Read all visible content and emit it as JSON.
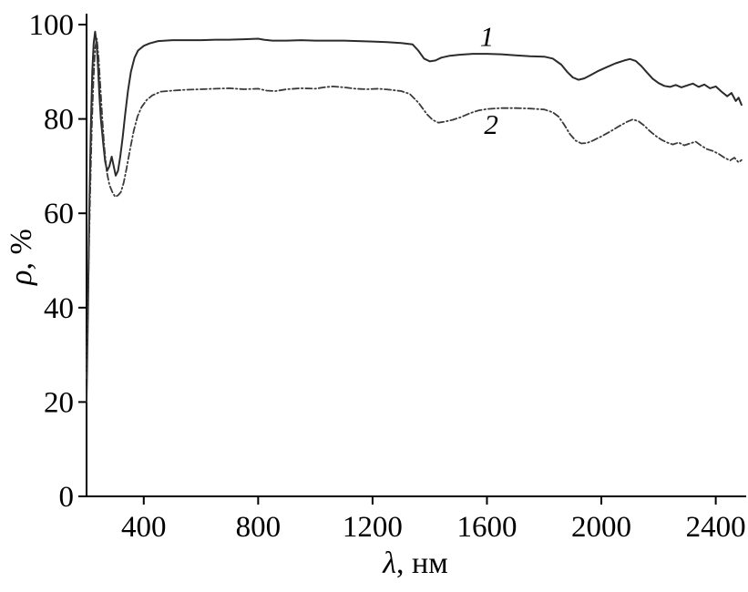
{
  "figure": {
    "background": "#ffffff"
  },
  "chart_data": {
    "type": "line",
    "title": "",
    "xlabel_symbol": "λ",
    "xlabel_rest": ", нм",
    "ylabel_symbol": "ρ",
    "ylabel_rest": ", %",
    "xlim": [
      200,
      2500
    ],
    "ylim": [
      0,
      100
    ],
    "x_ticks": [
      400,
      800,
      1200,
      1600,
      2000,
      2400
    ],
    "y_ticks": [
      0,
      20,
      40,
      60,
      80,
      100
    ],
    "grid": false,
    "legend_position": "inline-annotations",
    "axis_color": "#000000",
    "series": [
      {
        "name": "1",
        "style": "solid",
        "color": "#2b2b2b",
        "label_x": 1600,
        "label_y": 95.5,
        "points": [
          [
            200,
            20
          ],
          [
            205,
            40
          ],
          [
            210,
            62
          ],
          [
            215,
            78
          ],
          [
            220,
            90
          ],
          [
            225,
            96
          ],
          [
            230,
            98.5
          ],
          [
            235,
            96
          ],
          [
            240,
            91
          ],
          [
            245,
            85
          ],
          [
            250,
            80
          ],
          [
            258,
            75
          ],
          [
            265,
            71
          ],
          [
            272,
            69
          ],
          [
            280,
            70
          ],
          [
            288,
            72
          ],
          [
            295,
            70
          ],
          [
            302,
            68
          ],
          [
            310,
            69
          ],
          [
            318,
            72
          ],
          [
            326,
            76
          ],
          [
            335,
            81
          ],
          [
            345,
            86
          ],
          [
            355,
            90
          ],
          [
            368,
            93
          ],
          [
            380,
            94.5
          ],
          [
            400,
            95.5
          ],
          [
            420,
            96
          ],
          [
            450,
            96.5
          ],
          [
            500,
            96.7
          ],
          [
            550,
            96.7
          ],
          [
            600,
            96.7
          ],
          [
            650,
            96.8
          ],
          [
            700,
            96.8
          ],
          [
            750,
            96.9
          ],
          [
            800,
            97
          ],
          [
            820,
            96.8
          ],
          [
            850,
            96.6
          ],
          [
            900,
            96.6
          ],
          [
            950,
            96.7
          ],
          [
            1000,
            96.6
          ],
          [
            1050,
            96.6
          ],
          [
            1100,
            96.6
          ],
          [
            1150,
            96.5
          ],
          [
            1200,
            96.4
          ],
          [
            1250,
            96.3
          ],
          [
            1300,
            96.1
          ],
          [
            1340,
            95.8
          ],
          [
            1360,
            94.5
          ],
          [
            1380,
            92.8
          ],
          [
            1400,
            92.2
          ],
          [
            1420,
            92.4
          ],
          [
            1440,
            93
          ],
          [
            1470,
            93.4
          ],
          [
            1500,
            93.6
          ],
          [
            1550,
            93.8
          ],
          [
            1600,
            93.8
          ],
          [
            1650,
            93.7
          ],
          [
            1700,
            93.5
          ],
          [
            1750,
            93.3
          ],
          [
            1800,
            93.2
          ],
          [
            1830,
            92.8
          ],
          [
            1860,
            91.5
          ],
          [
            1880,
            90
          ],
          [
            1900,
            88.8
          ],
          [
            1920,
            88.3
          ],
          [
            1940,
            88.6
          ],
          [
            1960,
            89.2
          ],
          [
            1990,
            90.2
          ],
          [
            2020,
            91
          ],
          [
            2050,
            91.8
          ],
          [
            2080,
            92.4
          ],
          [
            2100,
            92.7
          ],
          [
            2120,
            92.3
          ],
          [
            2140,
            91.2
          ],
          [
            2160,
            89.8
          ],
          [
            2180,
            88.5
          ],
          [
            2200,
            87.6
          ],
          [
            2220,
            87
          ],
          [
            2240,
            86.8
          ],
          [
            2260,
            87.2
          ],
          [
            2280,
            86.7
          ],
          [
            2300,
            87.1
          ],
          [
            2320,
            87.5
          ],
          [
            2340,
            86.8
          ],
          [
            2360,
            87.3
          ],
          [
            2380,
            86.5
          ],
          [
            2400,
            86.9
          ],
          [
            2420,
            85.8
          ],
          [
            2440,
            84.8
          ],
          [
            2455,
            85.5
          ],
          [
            2470,
            83.8
          ],
          [
            2480,
            84.5
          ],
          [
            2490,
            83
          ]
        ]
      },
      {
        "name": "2",
        "style": "dash-dot",
        "color": "#3a3a3a",
        "label_x": 1615,
        "label_y": 76.8,
        "points": [
          [
            200,
            25
          ],
          [
            206,
            45
          ],
          [
            212,
            63
          ],
          [
            218,
            78
          ],
          [
            224,
            88
          ],
          [
            230,
            95
          ],
          [
            236,
            97
          ],
          [
            242,
            93
          ],
          [
            248,
            87
          ],
          [
            255,
            80
          ],
          [
            262,
            74
          ],
          [
            270,
            69
          ],
          [
            280,
            66
          ],
          [
            290,
            64.5
          ],
          [
            300,
            63.5
          ],
          [
            310,
            63.8
          ],
          [
            320,
            64.5
          ],
          [
            330,
            66.5
          ],
          [
            340,
            69.5
          ],
          [
            352,
            73.5
          ],
          [
            365,
            77.5
          ],
          [
            378,
            80.5
          ],
          [
            392,
            82.5
          ],
          [
            410,
            84
          ],
          [
            430,
            85
          ],
          [
            460,
            85.8
          ],
          [
            500,
            86
          ],
          [
            550,
            86.2
          ],
          [
            600,
            86.3
          ],
          [
            650,
            86.4
          ],
          [
            700,
            86.5
          ],
          [
            750,
            86.3
          ],
          [
            800,
            86.4
          ],
          [
            830,
            86
          ],
          [
            860,
            85.9
          ],
          [
            900,
            86.3
          ],
          [
            950,
            86.5
          ],
          [
            1000,
            86.4
          ],
          [
            1030,
            86.7
          ],
          [
            1060,
            86.9
          ],
          [
            1100,
            86.7
          ],
          [
            1140,
            86.4
          ],
          [
            1180,
            86.3
          ],
          [
            1220,
            86.4
          ],
          [
            1260,
            86.2
          ],
          [
            1300,
            85.9
          ],
          [
            1330,
            85.3
          ],
          [
            1360,
            83.5
          ],
          [
            1390,
            81
          ],
          [
            1410,
            79.8
          ],
          [
            1430,
            79.2
          ],
          [
            1450,
            79.4
          ],
          [
            1480,
            79.8
          ],
          [
            1510,
            80.4
          ],
          [
            1540,
            81.2
          ],
          [
            1570,
            81.8
          ],
          [
            1600,
            82.1
          ],
          [
            1650,
            82.3
          ],
          [
            1700,
            82.3
          ],
          [
            1750,
            82.2
          ],
          [
            1800,
            82
          ],
          [
            1830,
            81.4
          ],
          [
            1850,
            80.5
          ],
          [
            1870,
            78.8
          ],
          [
            1890,
            76.8
          ],
          [
            1910,
            75.4
          ],
          [
            1930,
            74.8
          ],
          [
            1950,
            74.9
          ],
          [
            1970,
            75.4
          ],
          [
            2000,
            76.3
          ],
          [
            2030,
            77.3
          ],
          [
            2060,
            78.4
          ],
          [
            2090,
            79.4
          ],
          [
            2110,
            79.9
          ],
          [
            2130,
            79.5
          ],
          [
            2150,
            78.6
          ],
          [
            2170,
            77.4
          ],
          [
            2190,
            76.4
          ],
          [
            2210,
            75.6
          ],
          [
            2230,
            75
          ],
          [
            2250,
            74.6
          ],
          [
            2270,
            75
          ],
          [
            2290,
            74.4
          ],
          [
            2310,
            74.8
          ],
          [
            2330,
            75.2
          ],
          [
            2350,
            74.3
          ],
          [
            2370,
            73.6
          ],
          [
            2390,
            73.2
          ],
          [
            2410,
            72.6
          ],
          [
            2430,
            71.8
          ],
          [
            2450,
            71.2
          ],
          [
            2465,
            71.8
          ],
          [
            2480,
            70.8
          ],
          [
            2490,
            71.3
          ]
        ]
      }
    ]
  }
}
